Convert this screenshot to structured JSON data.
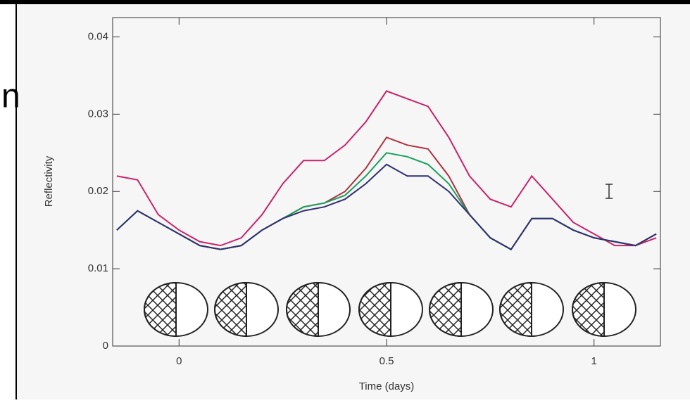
{
  "side_text": "n",
  "chart_data": {
    "type": "line",
    "xlabel": "Time (days)",
    "ylabel": "Reflectivity",
    "x": [
      -0.15,
      -0.1,
      -0.05,
      0,
      0.05,
      0.1,
      0.15,
      0.2,
      0.25,
      0.3,
      0.35,
      0.4,
      0.45,
      0.5,
      0.55,
      0.6,
      0.65,
      0.7,
      0.75,
      0.8,
      0.85,
      0.9,
      0.95,
      1,
      1.05,
      1.1,
      1.15
    ],
    "series": [
      {
        "color": "#c8246a",
        "values": [
          0.022,
          0.0215,
          0.017,
          0.015,
          0.0135,
          0.013,
          0.014,
          0.017,
          0.021,
          0.024,
          0.024,
          0.026,
          0.029,
          0.033,
          0.032,
          0.031,
          0.027,
          0.022,
          0.019,
          0.018,
          0.022,
          0.019,
          0.016,
          0.0145,
          0.013,
          0.013,
          0.014
        ]
      },
      {
        "color": "#b03040",
        "values": [
          0.015,
          0.0175,
          0.016,
          0.0145,
          0.013,
          0.0125,
          0.013,
          0.015,
          0.0165,
          0.018,
          0.0185,
          0.02,
          0.023,
          0.027,
          0.026,
          0.0255,
          0.022,
          0.017,
          0.014,
          0.0125,
          0.0165,
          0.0165,
          0.015,
          0.014,
          0.0135,
          0.013,
          0.0145
        ]
      },
      {
        "color": "#1aa060",
        "values": [
          0.015,
          0.0175,
          0.016,
          0.0145,
          0.013,
          0.0125,
          0.013,
          0.015,
          0.0165,
          0.018,
          0.0185,
          0.0195,
          0.022,
          0.025,
          0.0245,
          0.0235,
          0.021,
          0.017,
          0.014,
          0.0125,
          0.0165,
          0.0165,
          0.015,
          0.014,
          0.0135,
          0.013,
          0.0145
        ]
      },
      {
        "color": "#303070",
        "values": [
          0.015,
          0.0175,
          0.016,
          0.0145,
          0.013,
          0.0125,
          0.013,
          0.015,
          0.0165,
          0.0175,
          0.018,
          0.019,
          0.021,
          0.0235,
          0.022,
          0.022,
          0.02,
          0.017,
          0.014,
          0.0125,
          0.0165,
          0.0165,
          0.015,
          0.014,
          0.0135,
          0.013,
          0.0145
        ]
      }
    ],
    "xlim": [
      -0.16,
      1.16
    ],
    "xticks": [
      0,
      0.5,
      1
    ],
    "ylim": [
      0,
      0.0425
    ],
    "yticks": [
      0,
      0.01,
      0.02,
      0.03,
      0.04
    ]
  }
}
